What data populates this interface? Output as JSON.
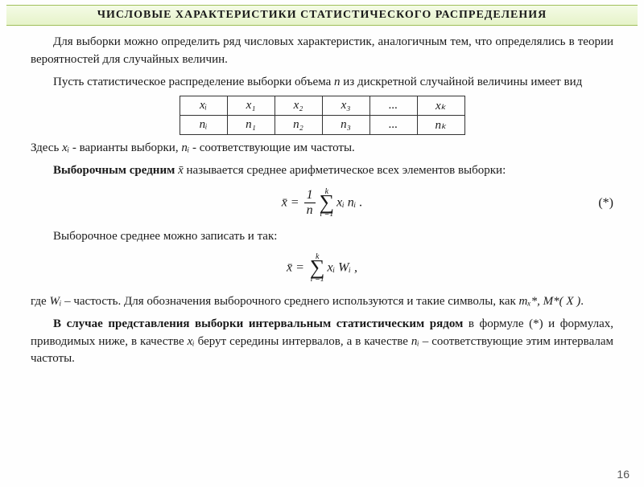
{
  "header": {
    "title": "ЧИСЛОВЫЕ  ХАРАКТЕРИСТИКИ  СТАТИСТИЧЕСКОГО  РАСПРЕДЕЛЕНИЯ"
  },
  "p1": "Для выборки можно определить ряд числовых характеристик, аналогичным тем, что определялись в теории вероятностей для случайных величин.",
  "p2_a": "Пусть статистическое распределение выборки объема ",
  "p2_n": "n",
  "p2_b": " из дискретной случайной величины имеет вид",
  "table": {
    "r1": [
      "xᵢ",
      "x₁",
      "x₂",
      "x₃",
      "...",
      "xₖ"
    ],
    "r2": [
      "nᵢ",
      "n₁",
      "n₂",
      "n₃",
      "...",
      "nₖ"
    ]
  },
  "p3_a": "Здесь ",
  "p3_xi": "xᵢ",
  "p3_b": " - варианты выборки, ",
  "p3_ni": "nᵢ",
  "p3_c": " - соответствующие им частоты.",
  "p4_bold": "Выборочным средним",
  "p4_x": " x̄ ",
  "p4_rest": " называется среднее арифметическое всех элементов выборки:",
  "f1": {
    "lhs": "x̄",
    "eq": " = ",
    "num": "1",
    "den": "n",
    "top": "k",
    "bot": "i =1",
    "term": "xᵢ nᵢ",
    "tail": " .",
    "marker": "(*)"
  },
  "p5": "Выборочное среднее можно записать и так:",
  "f2": {
    "lhs": "x̄",
    "eq": " = ",
    "top": "k",
    "bot": "i =1",
    "term": "xᵢ Wᵢ",
    "tail": " ,"
  },
  "p6_a": "где ",
  "p6_wi": "Wᵢ",
  "p6_b": " – частость. Для обозначения выборочного среднего используются и такие символы, как ",
  "p6_sym": "mₓ*, M*( X )",
  "p6_c": ".",
  "p7_a": "В случае представления выборки интервальным статистическим рядом",
  "p7_b": " в формуле (*) и формулах, приводимых ниже, в качестве ",
  "p7_xi": "xᵢ",
  "p7_c": " берут середины интервалов, а в качестве ",
  "p7_ni": "nᵢ",
  "p7_d": " – соответствующие этим интервалам частоты.",
  "page": "16"
}
